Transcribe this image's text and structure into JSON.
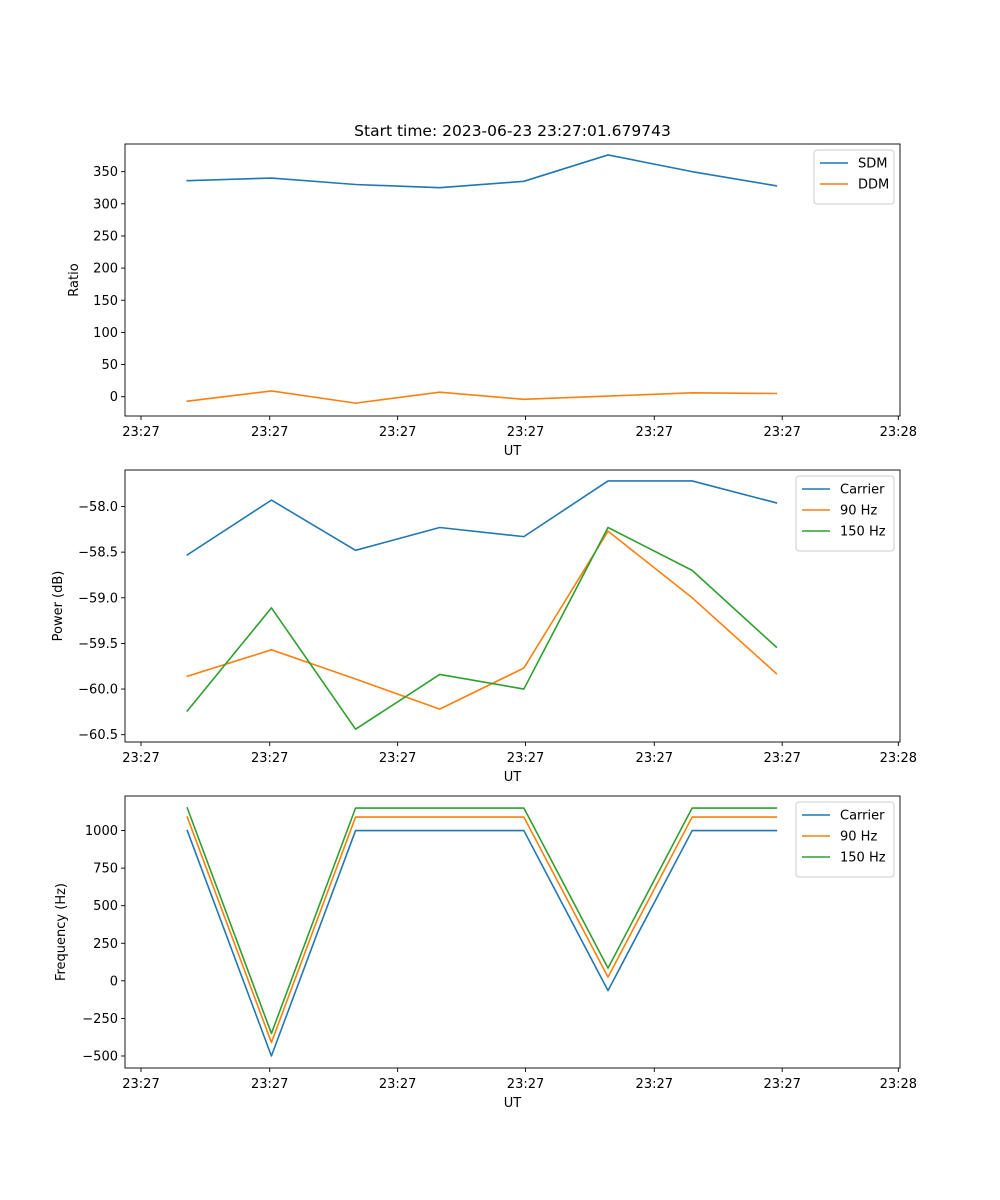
{
  "chart_data": [
    {
      "type": "line",
      "title": "Start time: 2023-06-23 23:27:01.679743",
      "xlabel": "UT",
      "ylabel": "Ratio",
      "x": [
        1,
        2,
        3,
        4,
        5,
        6,
        7,
        8
      ],
      "xlim": [
        0.26,
        9.47
      ],
      "x_ticks": [
        0.45,
        1.98,
        3.5,
        5.02,
        6.55,
        8.07,
        9.45
      ],
      "x_tick_labels": [
        "23:27",
        "23:27",
        "23:27",
        "23:27",
        "23:27",
        "23:27",
        "23:28"
      ],
      "ylim": [
        -30,
        393
      ],
      "y_ticks": [
        0,
        50,
        100,
        150,
        200,
        250,
        300,
        350
      ],
      "y_tick_labels": [
        "0",
        "50",
        "100",
        "150",
        "200",
        "250",
        "300",
        "350"
      ],
      "legend_position": "top-right",
      "series": [
        {
          "name": "SDM",
          "color": "#1f77b4",
          "values": [
            336,
            340,
            330,
            325,
            335,
            376,
            350,
            328
          ]
        },
        {
          "name": "DDM",
          "color": "#ff7f0e",
          "values": [
            -7,
            9,
            -10,
            7,
            -4,
            1,
            6,
            5
          ]
        }
      ]
    },
    {
      "type": "line",
      "title": "",
      "xlabel": "UT",
      "ylabel": "Power (dB)",
      "x": [
        1,
        2,
        3,
        4,
        5,
        6,
        7,
        8
      ],
      "xlim": [
        0.26,
        9.47
      ],
      "x_ticks": [
        0.45,
        1.98,
        3.5,
        5.02,
        6.55,
        8.07,
        9.45
      ],
      "x_tick_labels": [
        "23:27",
        "23:27",
        "23:27",
        "23:27",
        "23:27",
        "23:27",
        "23:28"
      ],
      "ylim": [
        -60.58,
        -57.6
      ],
      "y_ticks": [
        -60.5,
        -60.0,
        -59.5,
        -59.0,
        -58.5,
        -58.0
      ],
      "y_tick_labels": [
        "−60.5",
        "−60.0",
        "−59.5",
        "−59.0",
        "−58.5",
        "−58.0"
      ],
      "legend_position": "top-right",
      "series": [
        {
          "name": "Carrier",
          "color": "#1f77b4",
          "values": [
            -58.53,
            -57.93,
            -58.48,
            -58.23,
            -58.33,
            -57.72,
            -57.72,
            -57.96
          ]
        },
        {
          "name": "90 Hz",
          "color": "#ff7f0e",
          "values": [
            -59.86,
            -59.57,
            -59.89,
            -60.22,
            -59.77,
            -58.27,
            -59.0,
            -59.83
          ]
        },
        {
          "name": "150 Hz",
          "color": "#2ca02c",
          "values": [
            -60.24,
            -59.11,
            -60.44,
            -59.84,
            -60.0,
            -58.23,
            -58.7,
            -59.54
          ]
        }
      ]
    },
    {
      "type": "line",
      "title": "",
      "xlabel": "UT",
      "ylabel": "Frequency (Hz)",
      "x": [
        1,
        2,
        3,
        4,
        5,
        6,
        7,
        8
      ],
      "xlim": [
        0.26,
        9.47
      ],
      "x_ticks": [
        0.45,
        1.98,
        3.5,
        5.02,
        6.55,
        8.07,
        9.45
      ],
      "x_tick_labels": [
        "23:27",
        "23:27",
        "23:27",
        "23:27",
        "23:27",
        "23:27",
        "23:28"
      ],
      "ylim": [
        -580,
        1230
      ],
      "y_ticks": [
        -500,
        -250,
        0,
        250,
        500,
        750,
        1000
      ],
      "y_tick_labels": [
        "−500",
        "−250",
        "0",
        "250",
        "500",
        "750",
        "1000"
      ],
      "legend_position": "top-right",
      "series": [
        {
          "name": "Carrier",
          "color": "#1f77b4",
          "values": [
            1000,
            -500,
            1000,
            1000,
            1000,
            -65,
            1000,
            1000
          ]
        },
        {
          "name": "90 Hz",
          "color": "#ff7f0e",
          "values": [
            1090,
            -410,
            1090,
            1090,
            1090,
            25,
            1090,
            1090
          ]
        },
        {
          "name": "150 Hz",
          "color": "#2ca02c",
          "values": [
            1150,
            -350,
            1150,
            1150,
            1150,
            85,
            1150,
            1150
          ]
        }
      ]
    }
  ]
}
